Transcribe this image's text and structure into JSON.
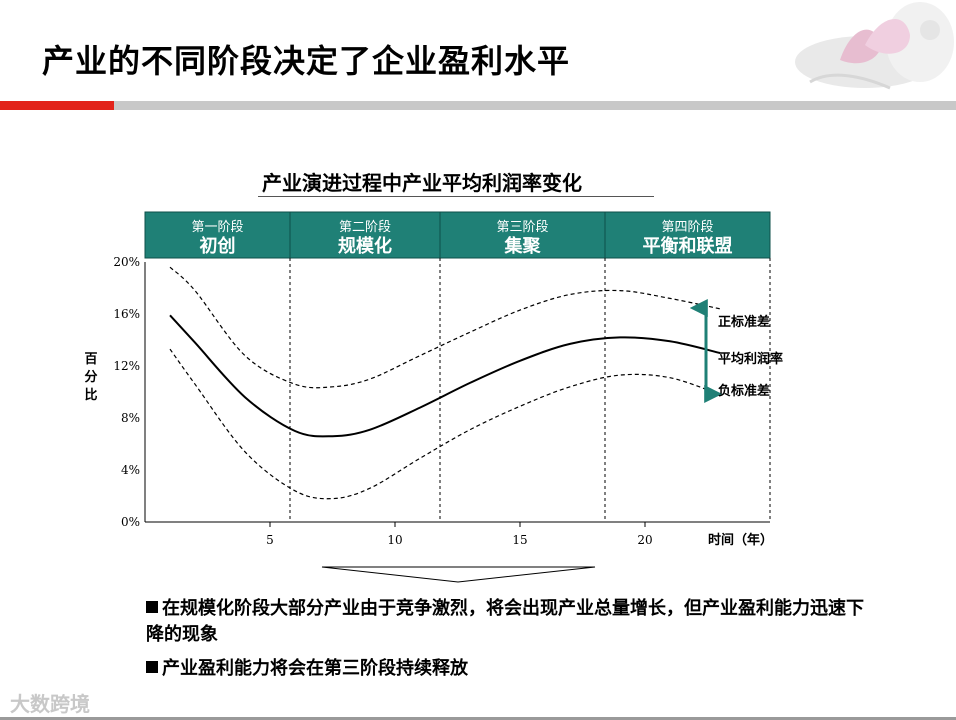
{
  "slide": {
    "title": "产业的不同阶段决定了企业盈利水平",
    "accent_red": "#e2231a",
    "stage_color": "#1f8076"
  },
  "chart_data": {
    "type": "line",
    "title": "产业演进过程中产业平均利润率变化",
    "xlabel": "时间（年）",
    "ylabel": "百分比",
    "xlim": [
      0,
      25
    ],
    "ylim": [
      0,
      20
    ],
    "x_ticks": [
      5,
      10,
      15,
      20
    ],
    "y_ticks": [
      "0%",
      "4%",
      "8%",
      "12%",
      "16%",
      "20%"
    ],
    "stages": [
      {
        "sub": "第一阶段",
        "name": "初创",
        "start": 0,
        "end": 5.8
      },
      {
        "sub": "第二阶段",
        "name": "规模化",
        "start": 5.8,
        "end": 11.8
      },
      {
        "sub": "第三阶段",
        "name": "集聚",
        "start": 11.8,
        "end": 18.4
      },
      {
        "sub": "第四阶段",
        "name": "平衡和联盟",
        "start": 18.4,
        "end": 25
      }
    ],
    "series": [
      {
        "name": "正标准差",
        "style": "dashed",
        "x": [
          1,
          2,
          4,
          6,
          7.5,
          9,
          11,
          13,
          15,
          17,
          19,
          21,
          23
        ],
        "y": [
          19.6,
          17.8,
          12.8,
          10.6,
          10.4,
          11.0,
          12.8,
          14.6,
          16.3,
          17.5,
          17.8,
          17.2,
          16.4
        ]
      },
      {
        "name": "平均利润率",
        "style": "solid",
        "x": [
          1,
          2,
          4,
          6,
          7.5,
          9,
          11,
          13,
          15,
          17,
          19,
          21,
          23
        ],
        "y": [
          15.9,
          13.8,
          9.6,
          7.0,
          6.6,
          7.1,
          8.8,
          10.7,
          12.4,
          13.7,
          14.2,
          13.9,
          13.0
        ]
      },
      {
        "name": "负标准差",
        "style": "dashed",
        "x": [
          1,
          2,
          4,
          6,
          7.5,
          9,
          11,
          13,
          15,
          17,
          19,
          21,
          23
        ],
        "y": [
          13.3,
          10.6,
          5.4,
          2.4,
          1.8,
          2.6,
          4.9,
          7.1,
          8.9,
          10.4,
          11.3,
          11.1,
          9.8
        ]
      }
    ],
    "annotations": [
      "正标准差",
      "平均利润率",
      "负标准差"
    ]
  },
  "bullets": [
    {
      "text": "在规模化阶段大部分产业由于竞争激烈，将会出现产业总量增长，但产业盈利能力迅速下降的现象"
    },
    {
      "text": "产业盈利能力将会在第三阶段持续释放"
    }
  ],
  "watermark": "大数跨境"
}
